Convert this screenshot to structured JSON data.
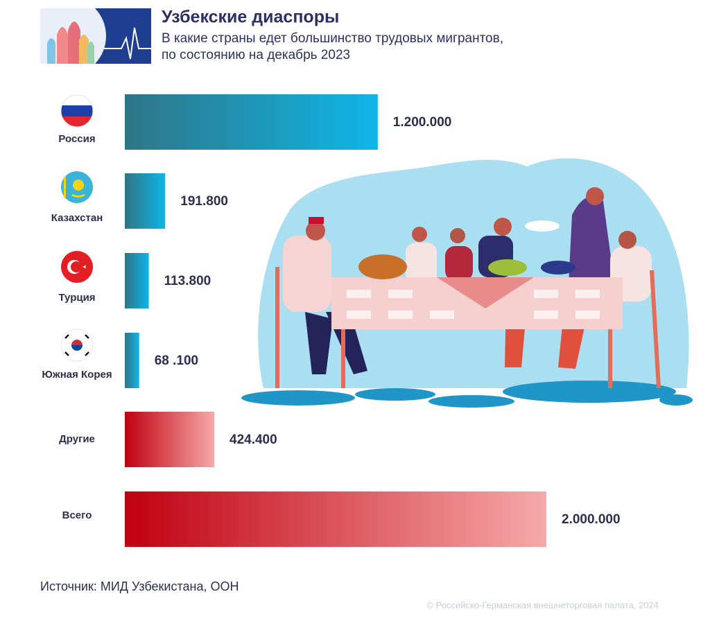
{
  "chart_data": {
    "type": "bar",
    "orientation": "horizontal",
    "title": "Узбекские диаспоры",
    "subtitle": [
      "В какие страны едет большинство трудовых мигрантов,",
      "по состоянию на декабрь 2023"
    ],
    "categories": [
      "Россия",
      "Казахстан",
      "Турция",
      "Южная Корея",
      "Другие",
      "Всего"
    ],
    "values": [
      1200000,
      191800,
      113800,
      68100,
      424400,
      2000000
    ],
    "value_labels": [
      "1.200.000",
      "191.800",
      "113.800",
      "68 .100",
      "424.400",
      "2.000.000"
    ],
    "colors": [
      [
        "#2f7586",
        "#0fb6e8"
      ],
      [
        "#2f7586",
        "#0fb6e8"
      ],
      [
        "#2f7586",
        "#0fb6e8"
      ],
      [
        "#2f7586",
        "#0fb6e8"
      ],
      [
        "#c00010",
        "#f6a9a9"
      ],
      [
        "#c00010",
        "#f6a9a9"
      ]
    ],
    "xlim": [
      0,
      2000000
    ],
    "source": "Источник: МИД Узбекистана, ООН",
    "copyright": "© Российско-Германская внешнеторговая палата, 2024"
  }
}
